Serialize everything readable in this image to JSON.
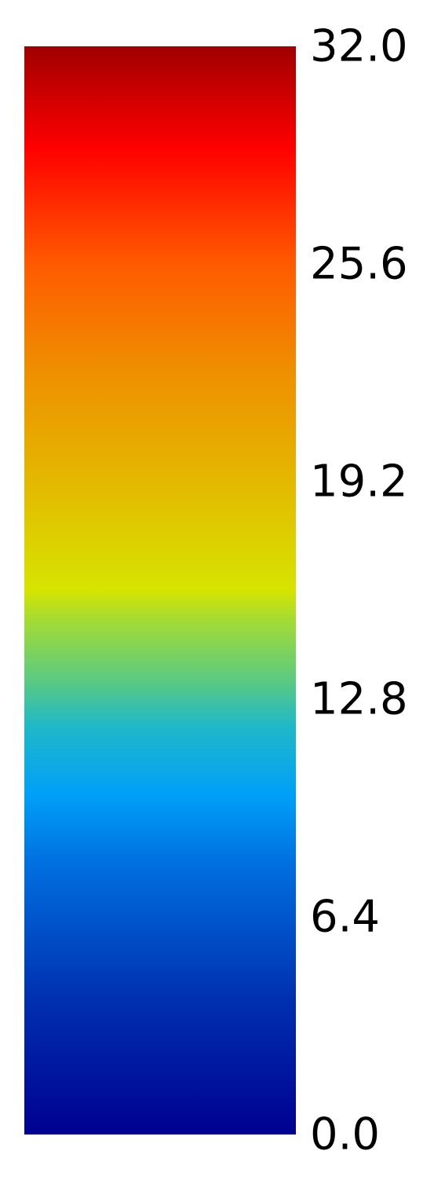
{
  "chart_data": {
    "type": "heatmap",
    "title": "",
    "xlabel": "",
    "ylabel": "",
    "colorbar": {
      "orientation": "vertical",
      "range": [
        0.0,
        32.0
      ],
      "ticks": [
        0.0,
        6.4,
        12.8,
        19.2,
        25.6,
        32.0
      ],
      "tick_labels": [
        "0.0",
        "6.4",
        "12.8",
        "19.2",
        "25.6",
        "32.0"
      ],
      "colors": [
        {
          "value": 0.0,
          "color": "#00008f"
        },
        {
          "value": 4.0,
          "color": "#0030b0"
        },
        {
          "value": 8.0,
          "color": "#0070e0"
        },
        {
          "value": 10.0,
          "color": "#00a0f8"
        },
        {
          "value": 12.0,
          "color": "#20b8c8"
        },
        {
          "value": 13.2,
          "color": "#55c888"
        },
        {
          "value": 15.2,
          "color": "#a8dc30"
        },
        {
          "value": 16.0,
          "color": "#d6e400"
        },
        {
          "value": 19.2,
          "color": "#e4b800"
        },
        {
          "value": 22.4,
          "color": "#ee9000"
        },
        {
          "value": 25.6,
          "color": "#ff5a00"
        },
        {
          "value": 29.0,
          "color": "#ff0000"
        },
        {
          "value": 32.0,
          "color": "#a00000"
        }
      ]
    }
  }
}
